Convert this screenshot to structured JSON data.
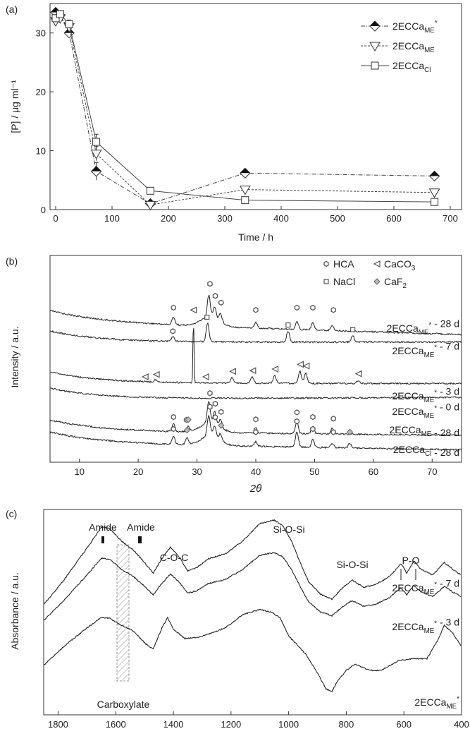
{
  "chart_data": [
    {
      "panel": "(a)",
      "type": "line",
      "xlabel": "Time / h",
      "ylabel": "[P] / μg ml⁻¹",
      "xlim": [
        -10,
        720
      ],
      "ylim": [
        0,
        35
      ],
      "xticks": [
        0,
        100,
        200,
        300,
        400,
        500,
        600,
        700
      ],
      "yticks": [
        0,
        10,
        20,
        30
      ],
      "legend_position": "top-right",
      "series": [
        {
          "name": "2ECCa",
          "sub": "ME",
          "sup": "*",
          "marker": "diamond-half",
          "line": "dashdot",
          "x": [
            0,
            8,
            24,
            72,
            168,
            336,
            672
          ],
          "y": [
            33.5,
            33,
            30,
            6.5,
            1.0,
            6.2,
            5.7
          ],
          "err": [
            0.5,
            0.5,
            0.6,
            1.5,
            0.3,
            0.5,
            0.3
          ]
        },
        {
          "name": "2ECCa",
          "sub": "ME",
          "sup": "",
          "marker": "triangle-down",
          "line": "dashed",
          "x": [
            0,
            8,
            24,
            72,
            168,
            336,
            672
          ],
          "y": [
            32,
            32.5,
            31,
            9.5,
            0.8,
            3.4,
            2.9
          ],
          "err": [
            0.5,
            0.5,
            0.8,
            1.2,
            0.3,
            0.5,
            0.4
          ]
        },
        {
          "name": "2ECCa",
          "sub": "Cl",
          "sup": "",
          "marker": "square",
          "line": "solid",
          "x": [
            0,
            8,
            24,
            72,
            168,
            336,
            672
          ],
          "y": [
            32.5,
            33.2,
            31.5,
            11.5,
            3.2,
            1.6,
            1.3
          ],
          "err": [
            0.5,
            0.5,
            0.7,
            1.3,
            0.3,
            0.3,
            0.3
          ]
        }
      ]
    },
    {
      "panel": "(b)",
      "type": "line",
      "xlabel": "2θ",
      "ylabel": "Intensity / a.u.",
      "xlim": [
        5,
        75
      ],
      "xticks": [
        10,
        20,
        30,
        40,
        50,
        60,
        70
      ],
      "legend": [
        {
          "symbol": "hex",
          "label": "HCA"
        },
        {
          "symbol": "tri",
          "label": "CaCO",
          "sub": "3"
        },
        {
          "symbol": "sq",
          "label": "NaCl"
        },
        {
          "symbol": "dia",
          "label": "CaF",
          "sub": "2"
        }
      ],
      "traces": [
        {
          "name": "2ECCa",
          "sub": "ME",
          "sup": "*",
          "suffix": " - 28 d",
          "peaks": [
            [
              26,
              0.5
            ],
            [
              32,
              1.4
            ],
            [
              33,
              0.7
            ],
            [
              34,
              0.5
            ],
            [
              40,
              0.35
            ],
            [
              47,
              0.5
            ],
            [
              49.7,
              0.5
            ],
            [
              53,
              0.35
            ]
          ],
          "markers": [
            [
              "hex",
              26
            ],
            [
              "hex",
              32.2
            ],
            [
              "hex",
              33.1
            ],
            [
              "hex",
              34.1
            ],
            [
              "hex",
              40
            ],
            [
              "hex",
              47
            ],
            [
              "hex",
              49.7
            ],
            [
              "hex",
              53.2
            ]
          ]
        },
        {
          "name": "2ECCa",
          "sub": "ME",
          "sup": "*",
          "suffix": " - 7 d",
          "peaks": [
            [
              25.9,
              0.3
            ],
            [
              31.8,
              1.2
            ],
            [
              45.5,
              0.7
            ],
            [
              56.5,
              0.4
            ]
          ],
          "markers": [
            [
              "hex",
              25.9
            ],
            [
              "sq",
              31.7
            ],
            [
              "sq",
              45.5
            ],
            [
              "sq",
              56.5
            ]
          ]
        },
        {
          "name": "2ECCa",
          "sub": "ME",
          "sup": "*",
          "suffix": " - 3 d",
          "peaks": [
            [
              23,
              0.15
            ],
            [
              29.4,
              4.3
            ],
            [
              36,
              0.35
            ],
            [
              39.4,
              0.4
            ],
            [
              43.2,
              0.5
            ],
            [
              47.5,
              0.8
            ],
            [
              48.5,
              0.7
            ],
            [
              57.4,
              0.2
            ]
          ],
          "markers": [
            [
              "tri",
              21.2
            ],
            [
              "tri",
              23.1
            ],
            [
              "tri",
              29.4
            ],
            [
              "tri",
              31.5
            ],
            [
              "tri",
              36.1
            ],
            [
              "tri",
              39.5
            ],
            [
              "tri",
              43.3
            ],
            [
              "tri",
              47.6
            ],
            [
              "tri",
              48.6
            ],
            [
              "tri",
              57.5
            ]
          ]
        },
        {
          "name": "2ECCa",
          "sub": "ME",
          "sup": "*",
          "suffix": " - 0 d",
          "peaks": [],
          "markers": []
        },
        {
          "name": "2ECCa",
          "sub": "ME",
          "sup": "",
          "suffix": " - 28 d",
          "peaks": [
            [
              26,
              0.5
            ],
            [
              28.5,
              0.3
            ],
            [
              32,
              1.4
            ],
            [
              33,
              0.8
            ],
            [
              34,
              0.5
            ],
            [
              40,
              0.35
            ],
            [
              47,
              0.8
            ],
            [
              49.7,
              0.5
            ],
            [
              53,
              0.4
            ]
          ],
          "markers": [
            [
              "hex",
              26
            ],
            [
              "hex",
              28.2
            ],
            [
              "dia",
              28.5
            ],
            [
              "hex",
              32.2
            ],
            [
              "hex",
              33.1
            ],
            [
              "hex",
              34.1
            ],
            [
              "hex",
              40
            ],
            [
              "hex",
              47
            ],
            [
              "hex",
              49.7
            ],
            [
              "hex",
              53.2
            ]
          ]
        },
        {
          "name": "2ECCa",
          "sub": "Cl",
          "sup": "",
          "suffix": " - 28 d",
          "peaks": [
            [
              26,
              0.5
            ],
            [
              28.3,
              0.4
            ],
            [
              32,
              1.3
            ],
            [
              33,
              0.7
            ],
            [
              34,
              0.4
            ],
            [
              40,
              0.3
            ],
            [
              47,
              1.0
            ],
            [
              49.7,
              0.5
            ],
            [
              53,
              0.3
            ],
            [
              56,
              0.3
            ]
          ],
          "markers": [
            [
              "hex",
              26
            ],
            [
              "dia",
              28.3
            ],
            [
              "hex",
              32.2
            ],
            [
              "hex",
              33.1
            ],
            [
              "dia",
              34.1
            ],
            [
              "hex",
              40
            ],
            [
              "hex",
              47
            ],
            [
              "hex",
              49.7
            ],
            [
              "hex",
              53.2
            ],
            [
              "dia",
              56
            ]
          ]
        }
      ]
    },
    {
      "panel": "(c)",
      "type": "line",
      "xlabel": "",
      "ylabel": "Absorbance / a.u.",
      "xlim": [
        1850,
        400
      ],
      "xticks": [
        1800,
        1600,
        1400,
        1200,
        1000,
        800,
        600,
        400
      ],
      "annotations": [
        "Amide",
        "Amide",
        "C-O-C",
        "Si-O-Si",
        "Si-O-Si",
        "P-O",
        "Carboxylate"
      ],
      "traces": [
        {
          "name": "2ECCa",
          "sub": "ME",
          "sup": "*",
          "suffix": " - 7 d"
        },
        {
          "name": "2ECCa",
          "sub": "ME",
          "sup": "*",
          "suffix": " - 3 d"
        },
        {
          "name": "2ECCa",
          "sub": "ME",
          "sup": "*",
          "suffix": ""
        }
      ]
    }
  ]
}
